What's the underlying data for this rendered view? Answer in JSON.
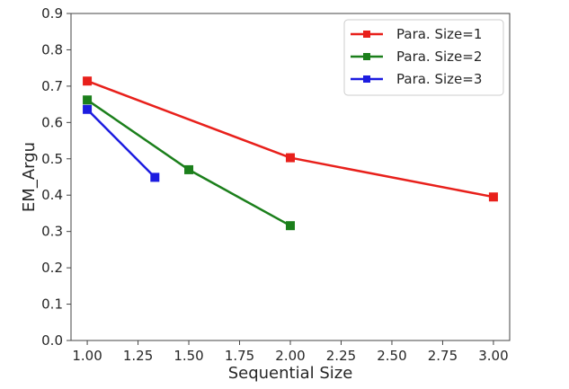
{
  "chart_data": {
    "type": "line",
    "xlabel": "Sequential Size",
    "ylabel": "EM_Argu",
    "xlim": [
      0.92,
      3.08
    ],
    "ylim": [
      0.0,
      0.9
    ],
    "xticks": [
      "1.00",
      "1.25",
      "1.50",
      "1.75",
      "2.00",
      "2.25",
      "2.50",
      "2.75",
      "3.00"
    ],
    "yticks": [
      "0.0",
      "0.1",
      "0.2",
      "0.3",
      "0.4",
      "0.5",
      "0.6",
      "0.7",
      "0.8",
      "0.9"
    ],
    "grid": false,
    "legend_position": "top-right",
    "series": [
      {
        "name": "Para. Size=1",
        "color": "#e8201b",
        "x": [
          1.0,
          2.0,
          3.0
        ],
        "y": [
          0.714,
          0.503,
          0.395
        ]
      },
      {
        "name": "Para. Size=2",
        "color": "#1b7f1b",
        "x": [
          1.0,
          1.5,
          2.0
        ],
        "y": [
          0.662,
          0.47,
          0.316
        ]
      },
      {
        "name": "Para. Size=3",
        "color": "#1c1ce0",
        "x": [
          1.0,
          1.333
        ],
        "y": [
          0.636,
          0.449
        ]
      }
    ]
  }
}
